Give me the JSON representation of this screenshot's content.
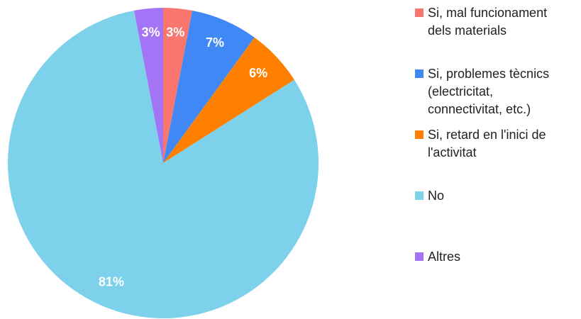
{
  "chart_data": {
    "type": "pie",
    "categories": [
      "Si, mal funcionament dels materials",
      "Si, problemes tècnics (electricitat, connectivitat, etc.)",
      "Si, retard en l'inici de l'activitat",
      "No",
      "Altres"
    ],
    "values": [
      3,
      7,
      6,
      81,
      3
    ],
    "value_labels": [
      "3%",
      "7%",
      "6%",
      "81%",
      "3%"
    ],
    "colors": [
      "#f8766d",
      "#3f88f5",
      "#ff8000",
      "#7dd1eb",
      "#a374f5"
    ],
    "legend": "right"
  }
}
